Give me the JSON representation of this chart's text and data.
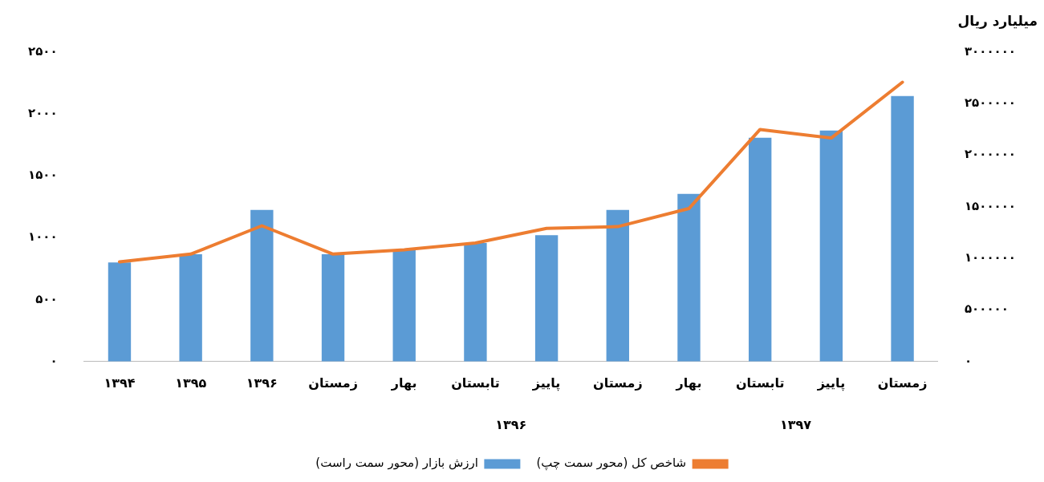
{
  "chart_data": {
    "type": "bar",
    "categories": [
      "۱۳۹۴",
      "۱۳۹۵",
      "۱۳۹۶",
      "زمستان",
      "بهار",
      "تابستان",
      "پاییز",
      "زمستان",
      "بهار",
      "تابستان",
      "پاییز",
      "زمستان"
    ],
    "series": [
      {
        "name": "شاخص کل (محور سمت چپ)",
        "type": "line",
        "color": "#ed7d31",
        "values": [
          806,
          868,
          1097,
          868,
          903,
          958,
          1076,
          1090,
          1236,
          1875,
          1806,
          2257
        ]
      },
      {
        "name": "ارزش بازار (محور سمت راست)",
        "axis": "y2",
        "color": "#5b9bd5",
        "values": [
          960000,
          1040000,
          1470000,
          1040000,
          1080000,
          1150000,
          1225000,
          1470000,
          1625000,
          2170000,
          2240000,
          2575000
        ]
      }
    ],
    "ylim": [
      0,
      2500
    ],
    "yticks": [
      {
        "value": 0,
        "label": "۰"
      },
      {
        "value": 500,
        "label": "۵۰۰"
      },
      {
        "value": 1000,
        "label": "۱۰۰۰"
      },
      {
        "value": 1500,
        "label": "۱۵۰۰"
      },
      {
        "value": 2000,
        "label": "۲۰۰۰"
      },
      {
        "value": 2500,
        "label": "۲۵۰۰"
      }
    ],
    "y2lim": [
      0,
      3000000
    ],
    "y2ticks": [
      {
        "value": 0,
        "label": "۰"
      },
      {
        "value": 500000,
        "label": "۵۰۰۰۰۰"
      },
      {
        "value": 1000000,
        "label": "۱۰۰۰۰۰۰"
      },
      {
        "value": 1500000,
        "label": "۱۵۰۰۰۰۰"
      },
      {
        "value": 2000000,
        "label": "۲۰۰۰۰۰۰"
      },
      {
        "value": 2500000,
        "label": "۲۵۰۰۰۰۰"
      },
      {
        "value": 3000000,
        "label": "۳۰۰۰۰۰۰"
      }
    ],
    "y2label": "میلیارد ریال",
    "annotations": [
      "۱۳۹۶",
      "۱۳۹۷"
    ],
    "grid": false,
    "legend": "bottom",
    "marker": "none"
  }
}
